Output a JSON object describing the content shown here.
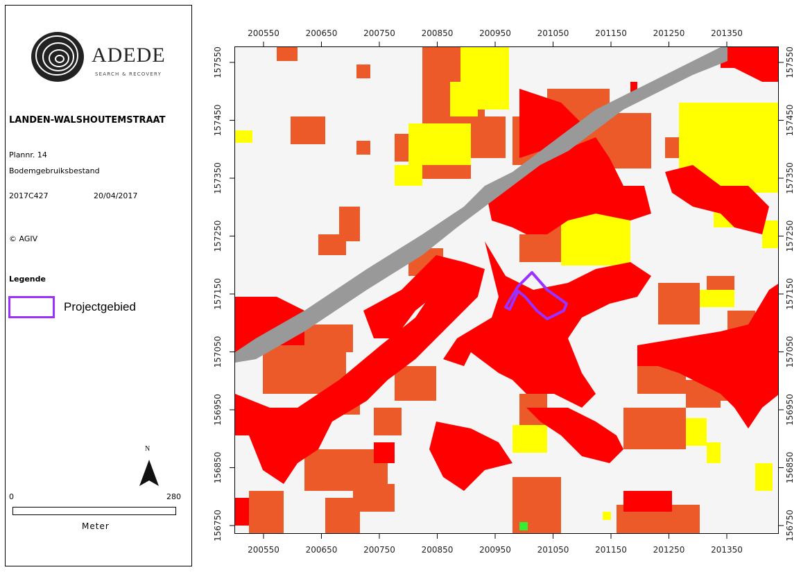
{
  "panel": {
    "logo_text": "ADEDE",
    "logo_tagline": "SEARCH & RECOVERY",
    "title": "LANDEN-WALSHOUTEMSTRAAT",
    "plan_number": "Plannr. 14",
    "map_name": "Bodemgebruiksbestand",
    "project_code": "2017C427",
    "date": "20/04/2017",
    "copyright": "© AGIV",
    "legend_title": "Legende",
    "legend_item": "Projectgebied",
    "north_label": "N",
    "scale_start": "0",
    "scale_end": "280",
    "scale_unit": "Meter"
  },
  "axes": {
    "x_ticks": [
      "200550",
      "200650",
      "200750",
      "200850",
      "200950",
      "201050",
      "201150",
      "201250",
      "201350"
    ],
    "y_ticks": [
      "157550",
      "157450",
      "157350",
      "157250",
      "157150",
      "157050",
      "156950",
      "156850",
      "156750"
    ]
  },
  "colors": {
    "background": "#f5f5f5",
    "red": "#ff0000",
    "orange": "#eb5a28",
    "yellow": "#ffff00",
    "gray": "#999999",
    "green": "#33ee33",
    "project_outline": "#9b30ff"
  }
}
